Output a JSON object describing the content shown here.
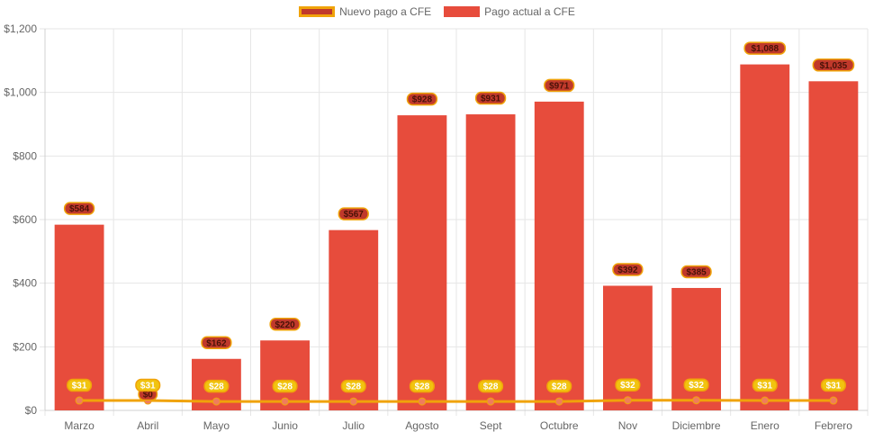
{
  "chart_data": {
    "type": "bar",
    "title": "",
    "xlabel": "",
    "ylabel": "",
    "categories": [
      "Marzo",
      "Abril",
      "Mayo",
      "Junio",
      "Julio",
      "Agosto",
      "Sept",
      "Octubre",
      "Nov",
      "Diciembre",
      "Enero",
      "Febrero"
    ],
    "ylim": [
      0,
      1200
    ],
    "yticks": [
      0,
      200,
      400,
      600,
      800,
      1000,
      1200
    ],
    "ytick_labels": [
      "$0",
      "$200",
      "$400",
      "$600",
      "$800",
      "$1,000",
      "$1,200"
    ],
    "legend_position": "top-center",
    "series": [
      {
        "name": "Nuevo pago a CFE",
        "type": "line",
        "color": "#f0a30a",
        "marker_color": "#f07c5c",
        "values": [
          31,
          31,
          28,
          28,
          28,
          28,
          28,
          28,
          32,
          32,
          31,
          31
        ],
        "labels": [
          "$31",
          "$31",
          "$28",
          "$28",
          "$28",
          "$28",
          "$28",
          "$28",
          "$32",
          "$32",
          "$31",
          "$31"
        ]
      },
      {
        "name": "Pago actual a CFE",
        "type": "bar",
        "color": "#e74c3c",
        "values": [
          584,
          0,
          162,
          220,
          567,
          928,
          931,
          971,
          392,
          385,
          1088,
          1035
        ],
        "labels": [
          "$584",
          "$0",
          "$162",
          "$220",
          "$567",
          "$928",
          "$931",
          "$971",
          "$392",
          "$385",
          "$1,088",
          "$1,035"
        ]
      }
    ]
  }
}
